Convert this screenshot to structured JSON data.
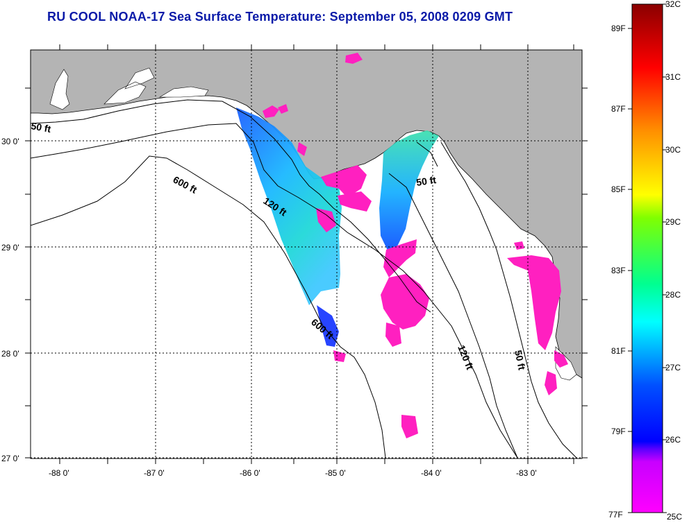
{
  "title": "RU COOL  NOAA-17  Sea Surface Temperature:  September 05, 2008 0209 GMT",
  "map": {
    "lon_labels": [
      "-88 0'",
      "-87 0'",
      "-86 0'",
      "-85 0'",
      "-84 0'",
      "-83 0'"
    ],
    "lat_labels": [
      "30 0'",
      "29 0'",
      "28 0'",
      "27 0'"
    ],
    "contour_labels": [
      "50 ft",
      "600 ft",
      "120 ft",
      "50 ft",
      "600 ft",
      "120 ft",
      "50 ft"
    ],
    "colors": {
      "land": "#b4b4b4",
      "ocean": "#ffffff",
      "no_data_cloud": "#ff20c0"
    }
  },
  "colorbar": {
    "celsius": [
      "32C",
      "31C",
      "30C",
      "29C",
      "28C",
      "27C",
      "26C",
      "25C"
    ],
    "fahrenheit": [
      "89F",
      "87F",
      "85F",
      "83F",
      "81F",
      "79F",
      "77F"
    ]
  }
}
